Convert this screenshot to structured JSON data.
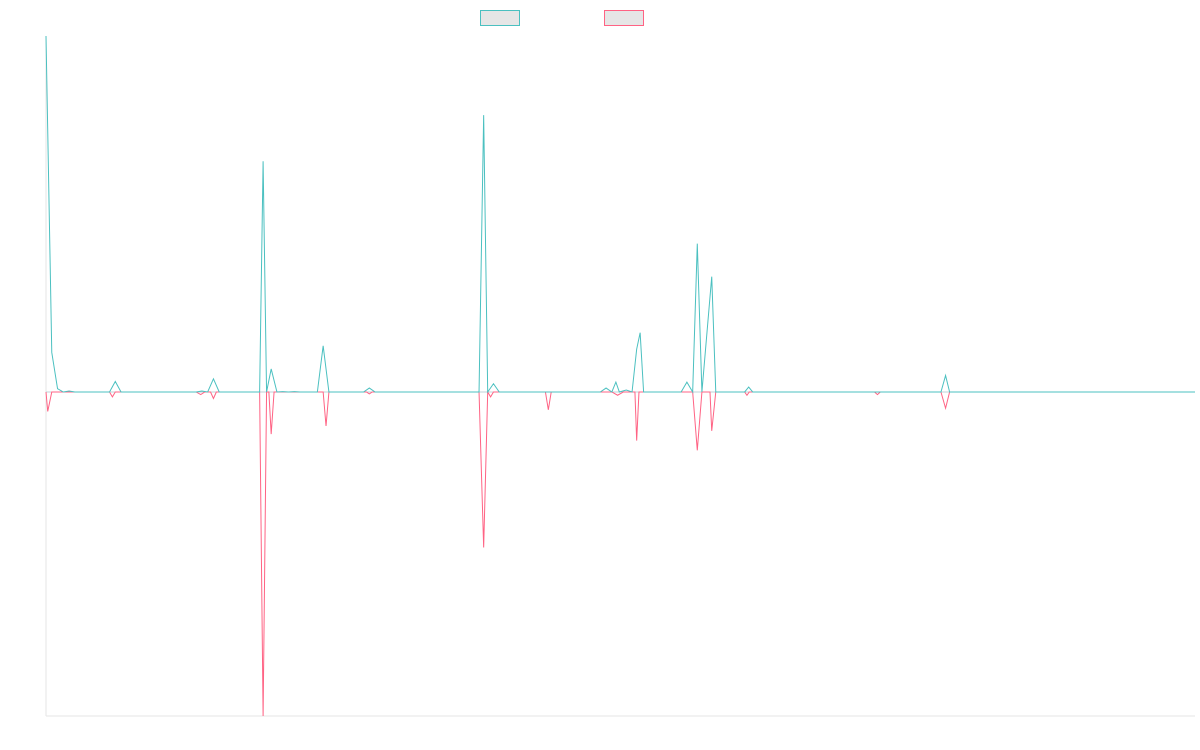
{
  "chart_data": {
    "type": "line",
    "title": "",
    "xlabel": "",
    "ylabel": "",
    "legend_position": "top",
    "grid": false,
    "baseline": 0,
    "ylim": [
      -100,
      108
    ],
    "x_count": 200,
    "colors": {
      "series_a": "#4bc0c0",
      "series_b": "#ff6384",
      "axis": "#e5e5e5"
    },
    "series": [
      {
        "name": "",
        "color": "#4bc0c0",
        "points": [
          [
            0,
            108
          ],
          [
            1,
            12
          ],
          [
            2,
            1
          ],
          [
            3,
            0
          ],
          [
            4,
            0.3
          ],
          [
            5,
            0
          ],
          [
            11,
            0
          ],
          [
            12,
            3.2
          ],
          [
            13,
            0
          ],
          [
            26,
            0
          ],
          [
            27,
            0.3
          ],
          [
            28,
            0
          ],
          [
            29,
            4
          ],
          [
            30,
            0
          ],
          [
            37,
            0
          ],
          [
            37.6,
            70
          ],
          [
            38.2,
            0
          ],
          [
            39,
            7
          ],
          [
            40,
            0
          ],
          [
            41,
            0.1
          ],
          [
            42,
            0
          ],
          [
            43,
            0.1
          ],
          [
            44,
            0
          ],
          [
            47,
            0
          ],
          [
            48,
            14
          ],
          [
            49,
            0
          ],
          [
            55,
            0
          ],
          [
            56,
            1.2
          ],
          [
            57,
            0
          ],
          [
            75,
            0
          ],
          [
            75.8,
            84
          ],
          [
            76.5,
            0
          ],
          [
            77.5,
            2.5
          ],
          [
            78.5,
            0
          ],
          [
            96,
            0
          ],
          [
            97,
            1.2
          ],
          [
            98,
            0
          ],
          [
            98.7,
            3
          ],
          [
            99.3,
            0
          ],
          [
            100.5,
            0.6
          ],
          [
            101.5,
            0
          ],
          [
            102.3,
            13
          ],
          [
            102.9,
            18
          ],
          [
            103.5,
            0
          ],
          [
            110,
            0
          ],
          [
            111,
            3
          ],
          [
            112,
            0
          ],
          [
            112.8,
            45
          ],
          [
            113.6,
            0
          ],
          [
            115.3,
            35
          ],
          [
            116,
            0
          ],
          [
            121,
            0
          ],
          [
            121.7,
            1.5
          ],
          [
            122.4,
            0
          ],
          [
            155,
            0
          ],
          [
            155.8,
            5
          ],
          [
            156.5,
            0
          ],
          [
            199,
            0
          ]
        ]
      },
      {
        "name": "",
        "color": "#ff6384",
        "points": [
          [
            0,
            0
          ],
          [
            0.3,
            -6
          ],
          [
            1,
            0
          ],
          [
            11,
            0
          ],
          [
            11.5,
            -1.5
          ],
          [
            12,
            0
          ],
          [
            26,
            0
          ],
          [
            26.8,
            -0.8
          ],
          [
            27.5,
            0
          ],
          [
            28.5,
            0
          ],
          [
            29,
            -2
          ],
          [
            29.5,
            0
          ],
          [
            37,
            0
          ],
          [
            37.6,
            -100
          ],
          [
            38.2,
            0
          ],
          [
            38.6,
            0
          ],
          [
            39,
            -13
          ],
          [
            39.5,
            0
          ],
          [
            48,
            0
          ],
          [
            48.5,
            -10.5
          ],
          [
            49,
            0
          ],
          [
            55.5,
            0
          ],
          [
            56,
            -0.6
          ],
          [
            56.5,
            0
          ],
          [
            75,
            0
          ],
          [
            75.8,
            -48
          ],
          [
            76.5,
            0
          ],
          [
            77,
            -1.5
          ],
          [
            77.5,
            0
          ],
          [
            86.5,
            0
          ],
          [
            87,
            -5.5
          ],
          [
            87.5,
            0
          ],
          [
            98,
            0
          ],
          [
            99,
            -1
          ],
          [
            100,
            0
          ],
          [
            102,
            0
          ],
          [
            102.3,
            -15
          ],
          [
            102.7,
            0
          ],
          [
            112,
            0
          ],
          [
            112.8,
            -18
          ],
          [
            113.6,
            0
          ],
          [
            115,
            0
          ],
          [
            115.3,
            -12
          ],
          [
            116,
            0
          ],
          [
            121,
            0
          ],
          [
            121.4,
            -1
          ],
          [
            121.8,
            0
          ],
          [
            143.5,
            0
          ],
          [
            144,
            -0.8
          ],
          [
            144.5,
            0
          ],
          [
            155,
            0
          ],
          [
            155.8,
            -5
          ],
          [
            156.5,
            0
          ],
          [
            199,
            0
          ]
        ]
      }
    ]
  }
}
